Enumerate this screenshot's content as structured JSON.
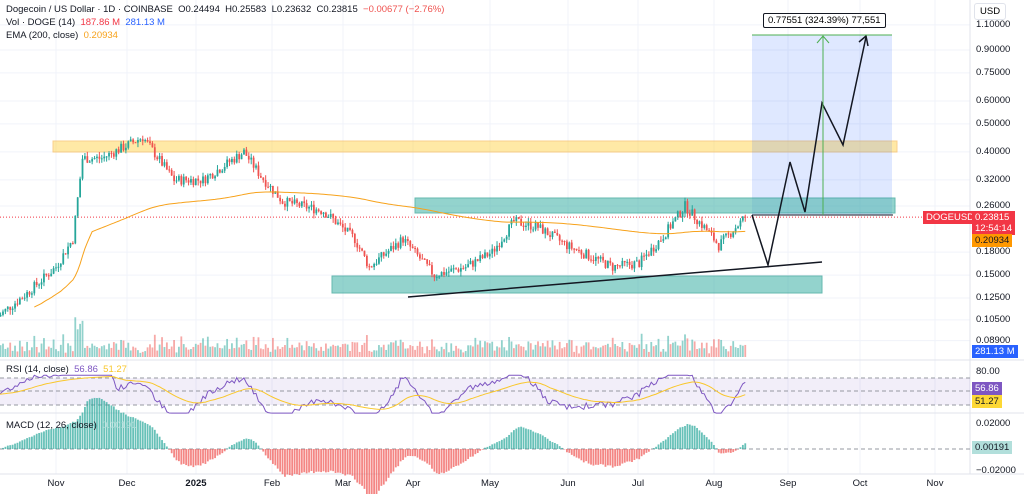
{
  "header": {
    "symbol": "Dogecoin / US Dollar · 1D · COINBASE",
    "open": "O0.24494",
    "high": "H0.25583",
    "low": "L0.23632",
    "close": "C0.23815",
    "change": "−0.00677 (−2.76%)"
  },
  "volume": {
    "label": "Vol · DOGE (14)",
    "value": "187.86 M",
    "ma": "281.13 M"
  },
  "ema": {
    "label": "EMA (200, close)",
    "value": "0.20934"
  },
  "rsi": {
    "label": "RSI (14, close)",
    "value": "56.86",
    "ma": "51.27",
    "axis": "80.00"
  },
  "macd": {
    "label": "MACD (12, 26, close)",
    "value": "0.00191",
    "axis_top": "0.02000",
    "axis_bottom": "−0.02000"
  },
  "price_axis": {
    "currency": "USD",
    "ticks": [
      "1.10000",
      "0.90000",
      "0.75000",
      "0.60000",
      "0.50000",
      "0.40000",
      "0.32000",
      "0.26000",
      "0.18000",
      "0.15000",
      "0.12500",
      "0.10500",
      "0.08900"
    ]
  },
  "tags": {
    "symbol": "DOGEUSD",
    "price": "0.23815",
    "countdown": "12:54:14",
    "ema": "0.20934",
    "volume": "281.13 M"
  },
  "position_label": "0.77551 (324.39%) 77,551",
  "time_axis": [
    "Nov",
    "Dec",
    "2025",
    "Feb",
    "Mar",
    "Apr",
    "May",
    "Jun",
    "Jul",
    "Aug",
    "Sep",
    "Oct",
    "Nov"
  ],
  "colors": {
    "up": "#26a69a",
    "down": "#ef5350",
    "ema": "#f7a21b",
    "rsi": "#7e57c2",
    "zone_yellow": "#ffd54f",
    "zone_teal": "#4db6ac"
  },
  "chart_data": {
    "type": "candlestick",
    "scale": "log",
    "keypoints_day_close": [
      [
        0,
        0.108
      ],
      [
        12,
        0.13
      ],
      [
        24,
        0.16
      ],
      [
        31,
        0.2
      ],
      [
        35,
        0.38
      ],
      [
        43,
        0.38
      ],
      [
        60,
        0.45
      ],
      [
        73,
        0.32
      ],
      [
        85,
        0.32
      ],
      [
        102,
        0.4
      ],
      [
        109,
        0.33
      ],
      [
        118,
        0.27
      ],
      [
        135,
        0.25
      ],
      [
        148,
        0.2
      ],
      [
        154,
        0.16
      ],
      [
        168,
        0.2
      ],
      [
        181,
        0.15
      ],
      [
        194,
        0.16
      ],
      [
        205,
        0.18
      ],
      [
        214,
        0.23
      ],
      [
        224,
        0.22
      ],
      [
        236,
        0.19
      ],
      [
        255,
        0.16
      ],
      [
        266,
        0.165
      ],
      [
        275,
        0.2
      ],
      [
        285,
        0.26
      ],
      [
        295,
        0.21
      ],
      [
        299,
        0.19
      ],
      [
        310,
        0.238
      ]
    ]
  }
}
